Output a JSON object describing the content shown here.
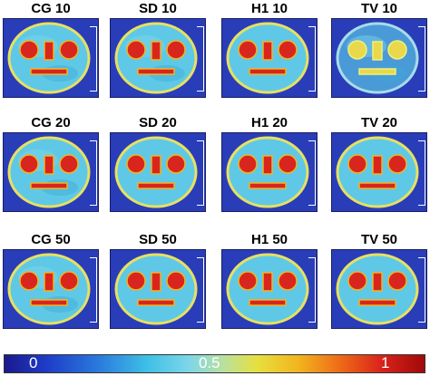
{
  "panels": [
    {
      "title": "CG 10",
      "variant": "cg10"
    },
    {
      "title": "SD 10",
      "variant": "sd10"
    },
    {
      "title": "H1 10",
      "variant": "h110"
    },
    {
      "title": "TV 10",
      "variant": "tv10"
    },
    {
      "title": "CG 20",
      "variant": "cg20"
    },
    {
      "title": "SD 20",
      "variant": "sd20"
    },
    {
      "title": "H1 20",
      "variant": "h120"
    },
    {
      "title": "TV 20",
      "variant": "tv20"
    },
    {
      "title": "CG 50",
      "variant": "cg50"
    },
    {
      "title": "SD 50",
      "variant": "sd50"
    },
    {
      "title": "H1 50",
      "variant": "h150"
    },
    {
      "title": "TV 50",
      "variant": "tv50"
    }
  ],
  "colorbar": {
    "labels": [
      "0",
      "0.5",
      "1"
    ],
    "colors": {
      "background": "#2a3db8",
      "head_fill": "#5fc8e6",
      "rim": "#e8e060",
      "features": "#d8261e"
    }
  }
}
